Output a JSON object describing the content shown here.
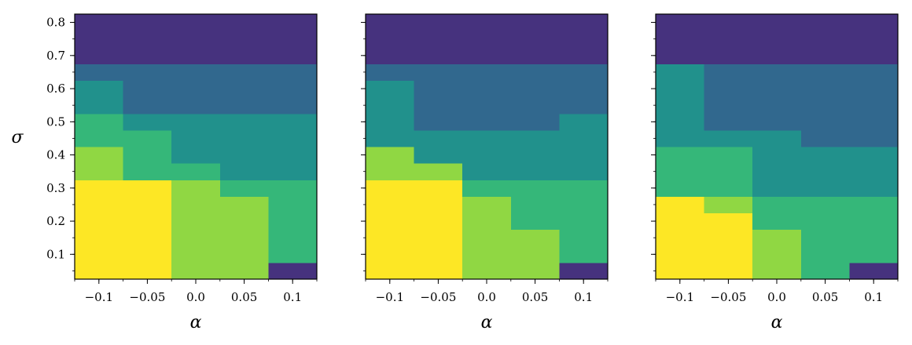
{
  "chart_data": [
    {
      "type": "heatmap",
      "xlabel": "α",
      "ylabel": "σ",
      "x": [
        -0.1,
        -0.05,
        0.0,
        0.05,
        0.1
      ],
      "xlim": [
        -0.125,
        0.125
      ],
      "y": [
        0.05,
        0.1,
        0.15,
        0.2,
        0.25,
        0.3,
        0.35,
        0.4,
        0.45,
        0.5,
        0.55,
        0.6,
        0.65,
        0.7,
        0.75,
        0.8
      ],
      "ylim": [
        0.025,
        0.825
      ],
      "xticks": [
        "−0.1",
        "−0.05",
        "0.0",
        "0.05",
        "0.1"
      ],
      "yticks": [
        "0.1",
        "0.2",
        "0.3",
        "0.4",
        "0.5",
        "0.6",
        "0.7",
        "0.8"
      ],
      "levels": [
        [
          4,
          4,
          3,
          3,
          0
        ],
        [
          4,
          4,
          3,
          3,
          2
        ],
        [
          4,
          4,
          3,
          3,
          2
        ],
        [
          4,
          4,
          3,
          3,
          2
        ],
        [
          4,
          4,
          3,
          3,
          2
        ],
        [
          4,
          4,
          3,
          2,
          2
        ],
        [
          3,
          2,
          2,
          1,
          1
        ],
        [
          3,
          2,
          1,
          1,
          1
        ],
        [
          2,
          2,
          1,
          1,
          1
        ],
        [
          2,
          1,
          1,
          1,
          1
        ],
        [
          1,
          0.5,
          0.5,
          0.5,
          0.5
        ],
        [
          1,
          0.5,
          0.5,
          0.5,
          0.5
        ],
        [
          0.5,
          0.5,
          0.5,
          0.5,
          0.5
        ],
        [
          0,
          0,
          0,
          0,
          0
        ],
        [
          0,
          0,
          0,
          0,
          0
        ],
        [
          0,
          0,
          0,
          0,
          0
        ]
      ]
    },
    {
      "type": "heatmap",
      "xlabel": "α",
      "ylabel": "",
      "x": [
        -0.1,
        -0.05,
        0.0,
        0.05,
        0.1
      ],
      "xlim": [
        -0.125,
        0.125
      ],
      "y": [
        0.05,
        0.1,
        0.15,
        0.2,
        0.25,
        0.3,
        0.35,
        0.4,
        0.45,
        0.5,
        0.55,
        0.6,
        0.65,
        0.7,
        0.75,
        0.8
      ],
      "ylim": [
        0.025,
        0.825
      ],
      "xticks": [
        "−0.1",
        "−0.05",
        "0.0",
        "0.05",
        "0.1"
      ],
      "yticks": [],
      "levels": [
        [
          4,
          4,
          3,
          3,
          0
        ],
        [
          4,
          4,
          3,
          3,
          2
        ],
        [
          4,
          4,
          3,
          3,
          2
        ],
        [
          4,
          4,
          3,
          2,
          2
        ],
        [
          4,
          4,
          3,
          2,
          2
        ],
        [
          4,
          4,
          2,
          2,
          2
        ],
        [
          3,
          3,
          1,
          1,
          1
        ],
        [
          3,
          1,
          1,
          1,
          1
        ],
        [
          1,
          1,
          1,
          1,
          1
        ],
        [
          1,
          0.5,
          0.5,
          0.5,
          1
        ],
        [
          1,
          0.5,
          0.5,
          0.5,
          0.5
        ],
        [
          1,
          0.5,
          0.5,
          0.5,
          0.5
        ],
        [
          0.5,
          0.5,
          0.5,
          0.5,
          0.5
        ],
        [
          0,
          0,
          0,
          0,
          0
        ],
        [
          0,
          0,
          0,
          0,
          0
        ],
        [
          0,
          0,
          0,
          0,
          0
        ]
      ]
    },
    {
      "type": "heatmap",
      "xlabel": "α",
      "ylabel": "",
      "x": [
        -0.1,
        -0.05,
        0.0,
        0.05,
        0.1
      ],
      "xlim": [
        -0.125,
        0.125
      ],
      "y": [
        0.05,
        0.1,
        0.15,
        0.2,
        0.25,
        0.3,
        0.35,
        0.4,
        0.45,
        0.5,
        0.55,
        0.6,
        0.65,
        0.7,
        0.75,
        0.8
      ],
      "ylim": [
        0.025,
        0.825
      ],
      "xticks": [
        "−0.1",
        "−0.05",
        "0.0",
        "0.05",
        "0.1"
      ],
      "yticks": [],
      "levels": [
        [
          4,
          4,
          3,
          2,
          0
        ],
        [
          4,
          4,
          3,
          2,
          2
        ],
        [
          4,
          4,
          3,
          2,
          2
        ],
        [
          4,
          4,
          2,
          2,
          2
        ],
        [
          4,
          3,
          2,
          2,
          2
        ],
        [
          2,
          2,
          1,
          1,
          1
        ],
        [
          2,
          2,
          1,
          1,
          1
        ],
        [
          2,
          2,
          1,
          1,
          1
        ],
        [
          1,
          1,
          1,
          0.5,
          0.5
        ],
        [
          1,
          0.5,
          0.5,
          0.5,
          0.5
        ],
        [
          1,
          0.5,
          0.5,
          0.5,
          0.5
        ],
        [
          1,
          0.5,
          0.5,
          0.5,
          0.5
        ],
        [
          1,
          0.5,
          0.5,
          0.5,
          0.5
        ],
        [
          0,
          0,
          0,
          0,
          0
        ],
        [
          0,
          0,
          0,
          0,
          0
        ],
        [
          0,
          0,
          0,
          0,
          0
        ]
      ]
    }
  ],
  "colors": {
    "0": "#46327e",
    "0.5": "#31688e",
    "1": "#21918c",
    "2": "#35b779",
    "3": "#90d743",
    "4": "#fde725"
  }
}
